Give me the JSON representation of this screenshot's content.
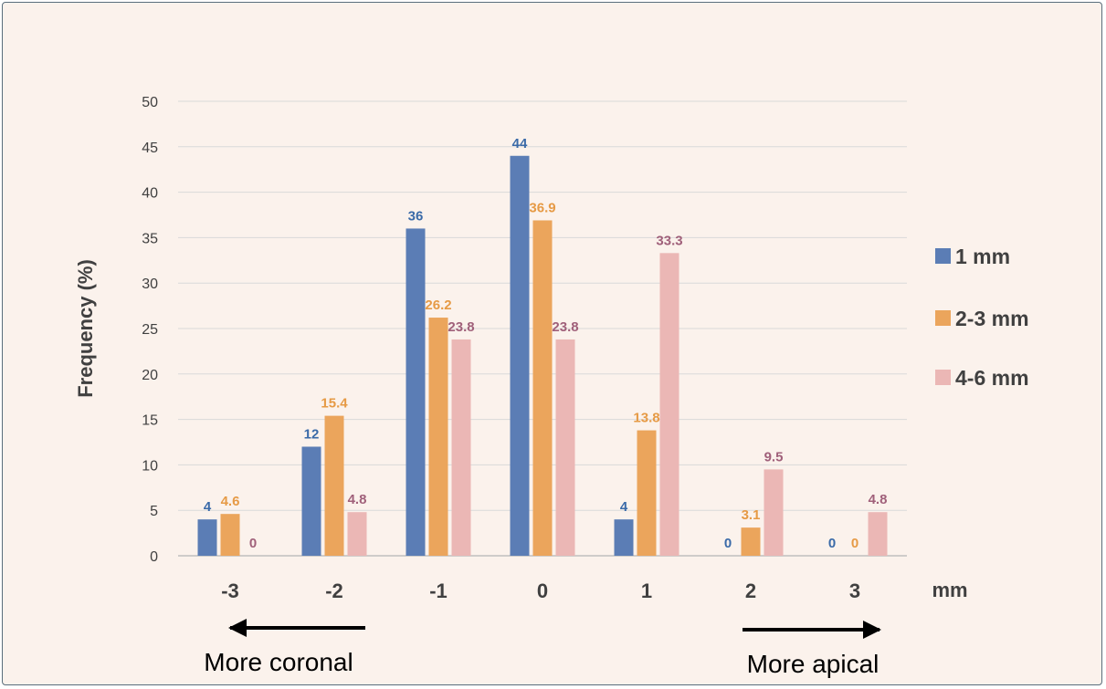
{
  "chart_data": {
    "type": "bar",
    "title": "",
    "ylabel": "Frequency (%)",
    "xunit": "mm",
    "ylim": [
      0,
      50
    ],
    "yticks": [
      0,
      5,
      10,
      15,
      20,
      25,
      30,
      35,
      40,
      45,
      50
    ],
    "categories": [
      "-3",
      "-2",
      "-1",
      "0",
      "1",
      "2",
      "3"
    ],
    "series": [
      {
        "name": "1 mm",
        "color": "#5b7db5",
        "label_color": "#3a6aa8",
        "values": [
          4,
          12,
          36,
          44,
          4,
          0,
          0
        ]
      },
      {
        "name": "2-3 mm",
        "color": "#eba55c",
        "label_color": "#e69a45",
        "values": [
          4.6,
          15.4,
          26.2,
          36.9,
          13.8,
          3.1,
          0
        ]
      },
      {
        "name": "4-6 mm",
        "color": "#ebb7b5",
        "label_color": "#a0607a",
        "values": [
          0,
          4.8,
          23.8,
          23.8,
          33.3,
          9.5,
          4.8
        ]
      }
    ],
    "data_labels": [
      [
        "4",
        "12",
        "36",
        "44",
        "4",
        "0",
        "0"
      ],
      [
        "4.6",
        "15.4",
        "26.2",
        "36.9",
        "13.8",
        "3.1",
        "0"
      ],
      [
        "0",
        "4.8",
        "23.8",
        "23.8",
        "33.3",
        "9.5",
        "4.8"
      ]
    ],
    "grid": true,
    "legend": "right"
  },
  "annotations": {
    "left_text": "More coronal",
    "right_text": "More apical"
  }
}
